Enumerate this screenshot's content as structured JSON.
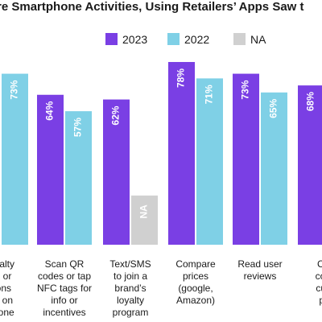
{
  "chart_data": {
    "type": "bar",
    "title": "re Smartphone Activities, Using Retailers’ Apps Saw t",
    "ylim": [
      0,
      100
    ],
    "grid": false,
    "legend_position": "top",
    "series": [
      {
        "name": "2023",
        "color": "#7A3FE4"
      },
      {
        "name": "2022",
        "color": "#7FD0E6"
      },
      {
        "name": "NA",
        "color": "#D0D0D0"
      }
    ],
    "categories": [
      {
        "lines": [
          "loyalty",
          "ds or",
          "oons",
          "ed on",
          "phone"
        ],
        "bars": [
          {
            "series": "2023",
            "value": null
          },
          {
            "series": "2022",
            "value": 73,
            "label": "73%"
          }
        ]
      },
      {
        "lines": [
          "Scan QR",
          "codes or tap",
          "NFC tags for",
          "info or",
          "incentives"
        ],
        "bars": [
          {
            "series": "2023",
            "value": 64,
            "label": "64%"
          },
          {
            "series": "2022",
            "value": 57,
            "label": "57%"
          }
        ]
      },
      {
        "lines": [
          "Text/SMS",
          "to join a",
          "brand’s",
          "loyalty",
          "program"
        ],
        "bars": [
          {
            "series": "2023",
            "value": 62,
            "label": "62%"
          },
          {
            "series": "NA",
            "value": 21,
            "label": "NA"
          }
        ]
      },
      {
        "lines": [
          "Compare",
          "prices",
          "(google,",
          "Amazon)"
        ],
        "bars": [
          {
            "series": "2023",
            "value": 78,
            "label": "78%"
          },
          {
            "series": "2022",
            "value": 71,
            "label": "71%"
          }
        ]
      },
      {
        "lines": [
          "Read user",
          "reviews"
        ],
        "bars": [
          {
            "series": "2023",
            "value": 73,
            "label": "73%"
          },
          {
            "series": "2022",
            "value": 65,
            "label": "65%"
          }
        ]
      },
      {
        "lines": [
          "Clic",
          "colle",
          "curb",
          "pic"
        ],
        "bars": [
          {
            "series": "2023",
            "value": 68,
            "label": "68%"
          }
        ]
      }
    ]
  }
}
